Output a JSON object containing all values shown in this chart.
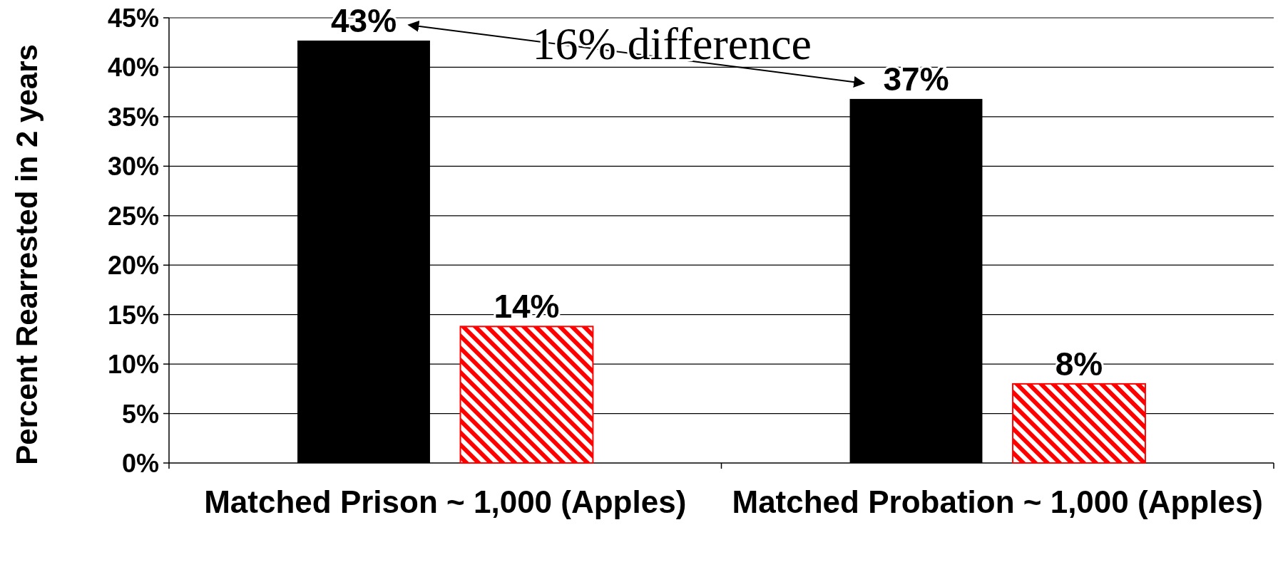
{
  "chart_data": {
    "type": "bar",
    "ylabel": "Percent Rearrested in 2 years",
    "categories": [
      "Matched Prison ~ 1,000 (Apples)",
      "Matched Probation ~ 1,000 (Apples)"
    ],
    "series": [
      {
        "color": "#000000",
        "values": [
          42.7,
          36.8
        ],
        "value_labels": [
          "43%",
          "37%"
        ]
      },
      {
        "color": "#ff0000",
        "values": [
          13.8,
          8.0
        ],
        "value_labels": [
          "14%",
          "8%"
        ]
      }
    ],
    "ylim": [
      0,
      45
    ],
    "yticks": [
      {
        "value": 0,
        "label": "0%"
      },
      {
        "value": 5,
        "label": "5%"
      },
      {
        "value": 10,
        "label": "10%"
      },
      {
        "value": 15,
        "label": "15%"
      },
      {
        "value": 20,
        "label": "20%"
      },
      {
        "value": 25,
        "label": "25%"
      },
      {
        "value": 30,
        "label": "30%"
      },
      {
        "value": 35,
        "label": "35%"
      },
      {
        "value": 40,
        "label": "40%"
      },
      {
        "value": 45,
        "label": "45%"
      }
    ],
    "grid": "y",
    "annotations": [
      "16% difference"
    ]
  }
}
